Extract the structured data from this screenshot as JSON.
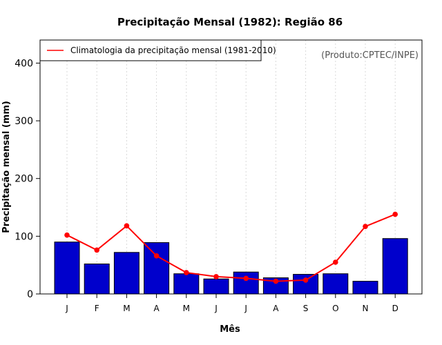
{
  "chart_data": {
    "type": "bar",
    "title": "Precipitação Mensal (1982): Região 86",
    "xlabel": "Mês",
    "ylabel": "Precipitação mensal (mm)",
    "ylim": [
      0,
      440
    ],
    "yticks": [
      0,
      100,
      200,
      300,
      400
    ],
    "categories": [
      "J",
      "F",
      "M",
      "A",
      "M",
      "J",
      "J",
      "A",
      "S",
      "O",
      "N",
      "D"
    ],
    "series": [
      {
        "name": "Precipitação mensal (1982)",
        "type": "bar",
        "color": "#0000CC",
        "values": [
          90,
          52,
          72,
          89,
          35,
          26,
          38,
          28,
          34,
          35,
          22,
          96
        ]
      },
      {
        "name": "Climatologia da precipitação mensal (1981-2010)",
        "type": "line",
        "color": "#FF0000",
        "values": [
          102,
          76,
          118,
          66,
          37,
          30,
          27,
          22,
          24,
          55,
          117,
          138
        ]
      }
    ],
    "legend": {
      "position": "top-left",
      "entries": [
        "Climatologia da precipitação mensal (1981-2010)"
      ]
    },
    "annotation": "(Produto:CPTEC/INPE)",
    "grid": "vertical-dotted"
  }
}
